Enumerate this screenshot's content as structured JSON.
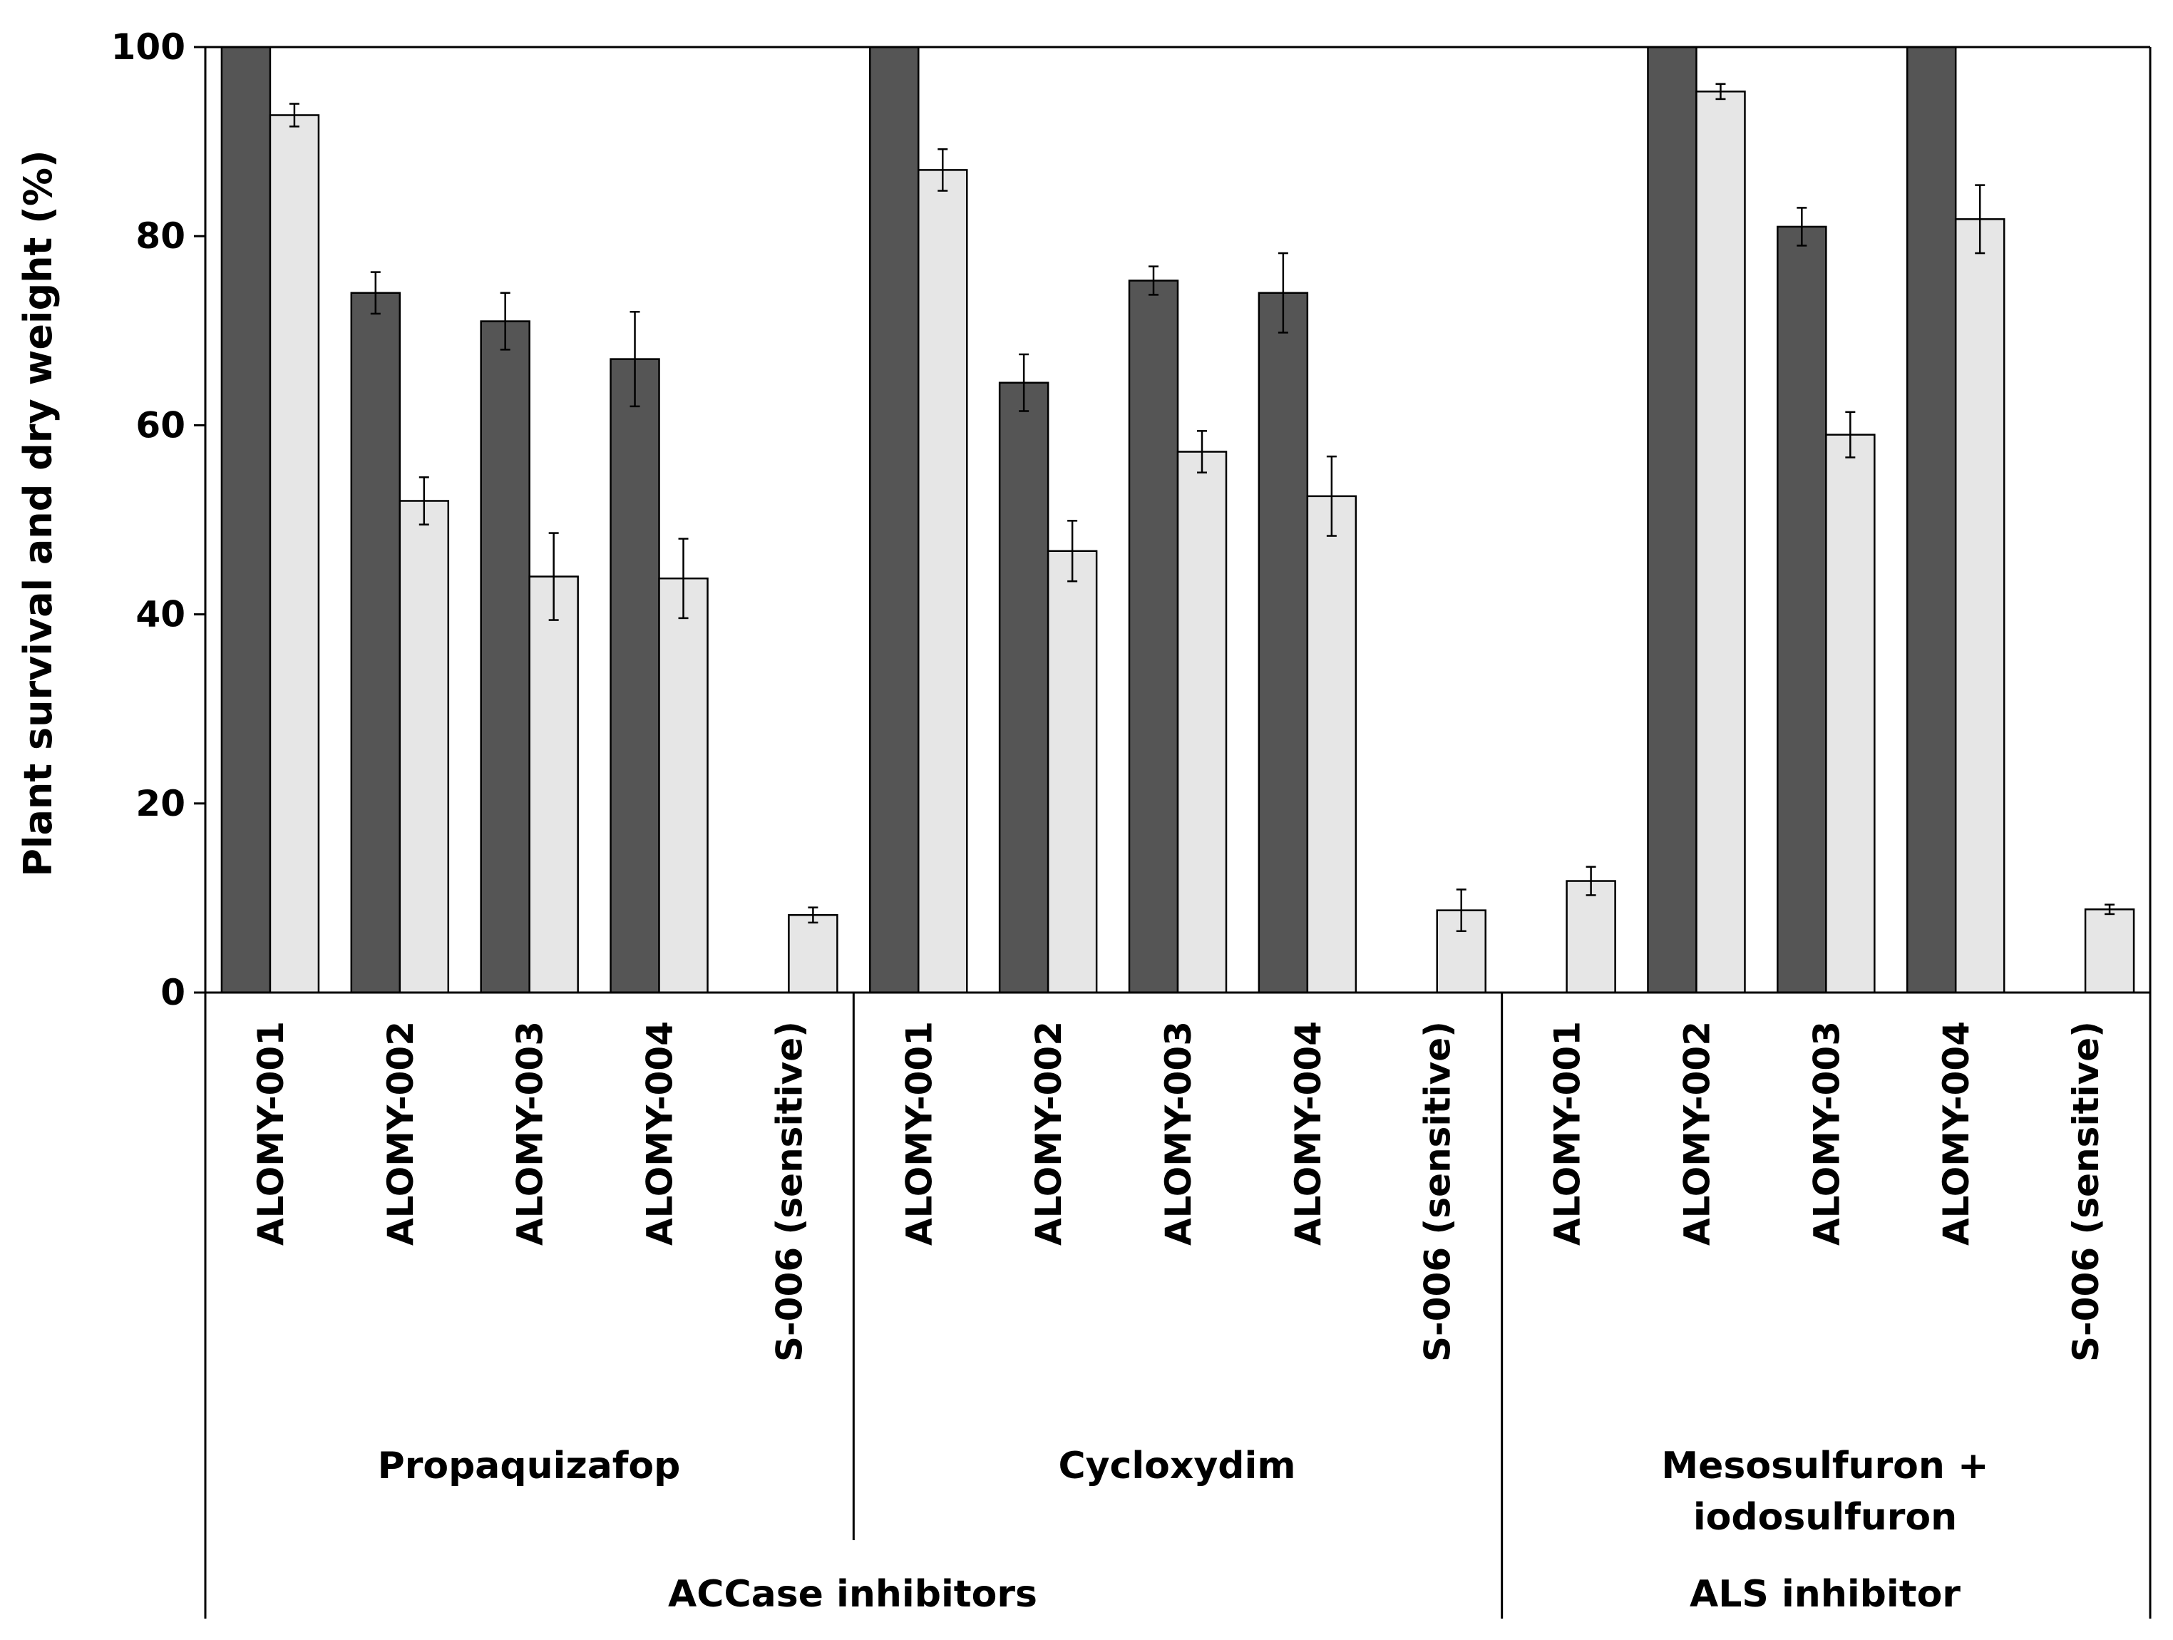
{
  "chart_data": {
    "type": "bar",
    "title": "",
    "xlabel": "",
    "ylabel": "Plant survival and dry weight (%)",
    "ylim": [
      0,
      100
    ],
    "yticks": [
      0,
      20,
      40,
      60,
      80,
      100
    ],
    "grid": false,
    "legend": "none",
    "colors": {
      "survival": "#555555",
      "dry_weight": "#e6e6e6",
      "outline": "#000000"
    },
    "herbicides": [
      "Propaquizafop",
      "Cycloxydim",
      "Mesosulfuron +",
      "iodosulfuron"
    ],
    "classes": [
      "ACCase inhibitors",
      "ALS inhibitor"
    ],
    "categories": [
      "ALOMY-001",
      "ALOMY-002",
      "ALOMY-003",
      "ALOMY-004",
      "S-006 (sensitive)",
      "ALOMY-001",
      "ALOMY-002",
      "ALOMY-003",
      "ALOMY-004",
      "S-006 (sensitive)",
      "ALOMY-001",
      "ALOMY-002",
      "ALOMY-003",
      "ALOMY-004",
      "S-006 (sensitive)"
    ],
    "series": [
      {
        "name": "Plant survival",
        "values": [
          100,
          74,
          71,
          67,
          0,
          100,
          64.5,
          75.3,
          74,
          0,
          0,
          100,
          81,
          100,
          0
        ],
        "errors": [
          0,
          2.2,
          3,
          5,
          0,
          0,
          3,
          1.5,
          4.2,
          0,
          0,
          0,
          2,
          0,
          0
        ]
      },
      {
        "name": "Dry weight",
        "values": [
          92.8,
          52,
          44,
          43.8,
          8.2,
          87,
          46.7,
          57.2,
          52.5,
          8.7,
          11.8,
          95.3,
          59,
          81.8,
          8.8
        ],
        "errors": [
          1.2,
          2.5,
          4.6,
          4.2,
          0.8,
          2.2,
          3.2,
          2.2,
          4.2,
          2.2,
          1.5,
          0.8,
          2.4,
          3.6,
          0.5
        ]
      }
    ]
  }
}
